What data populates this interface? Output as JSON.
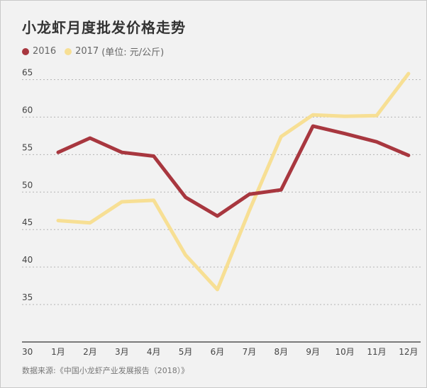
{
  "title": "小龙虾月度批发价格走势",
  "legend": {
    "unit": "(单位: 元/公斤)"
  },
  "source": "数据来源:《中国小龙虾产业发展报告（2018）》",
  "colors": {
    "series_2016": "#a8373f",
    "series_2017": "#f7df94",
    "grid": "#b5b5b5",
    "axis": "#333333",
    "text": "#444444"
  },
  "chart_data": {
    "type": "line",
    "title": "小龙虾月度批发价格走势",
    "categories": [
      "1月",
      "2月",
      "3月",
      "4月",
      "5月",
      "6月",
      "7月",
      "8月",
      "9月",
      "10月",
      "11月",
      "12月"
    ],
    "series": [
      {
        "name": "2016",
        "values": [
          55.3,
          57.2,
          55.3,
          54.8,
          49.3,
          46.8,
          49.7,
          50.3,
          58.8,
          57.8,
          56.7,
          54.9
        ]
      },
      {
        "name": "2017",
        "values": [
          46.2,
          45.9,
          48.7,
          48.9,
          41.6,
          37.0,
          47.5,
          57.4,
          60.3,
          60.1,
          60.2,
          65.8
        ]
      }
    ],
    "yticks": [
      30,
      35,
      40,
      45,
      50,
      55,
      60,
      65
    ],
    "ylim": [
      30,
      67.5
    ],
    "grid": true,
    "legend_position": "top-left"
  }
}
